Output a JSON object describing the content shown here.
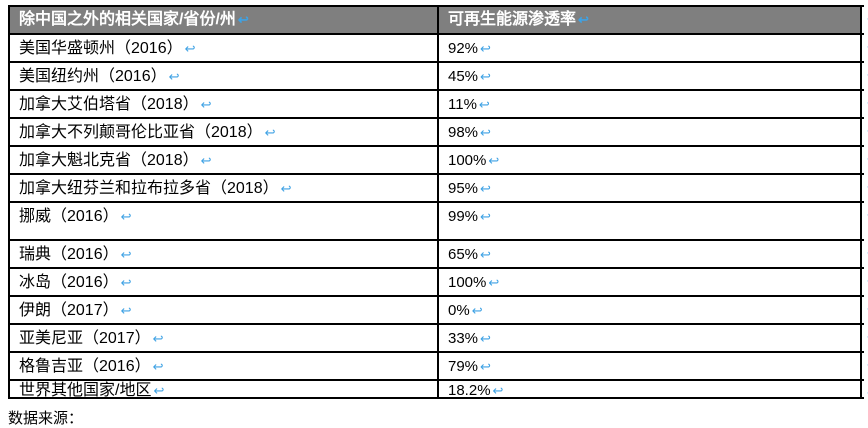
{
  "table": {
    "header": {
      "country_col": "除中国之外的相关国家/省份/州",
      "value_col": "可再生能源渗透率"
    },
    "rows": [
      {
        "name": "美国华盛顿州（2016）",
        "value": "92%"
      },
      {
        "name": "美国纽约州（2016）",
        "value": "45%"
      },
      {
        "name": "加拿大艾伯塔省（2018）",
        "value": "11%"
      },
      {
        "name": "加拿大不列颠哥伦比亚省（2018）",
        "value": "98%"
      },
      {
        "name": "加拿大魁北克省（2018）",
        "value": "100%"
      },
      {
        "name": "加拿大纽芬兰和拉布拉多省（2018）",
        "value": "95%"
      },
      {
        "name": "挪威（2016）",
        "value": "99%"
      },
      {
        "name": "瑞典（2016）",
        "value": "65%"
      },
      {
        "name": "冰岛（2016）",
        "value": "100%"
      },
      {
        "name": "伊朗（2017）",
        "value": "0%"
      },
      {
        "name": "亚美尼亚（2017）",
        "value": "33%"
      },
      {
        "name": "格鲁吉亚（2016）",
        "value": "79%"
      },
      {
        "name": "世界其他国家/地区",
        "value": "18.2%"
      }
    ]
  },
  "marks": {
    "return_mark": "↩"
  },
  "footer": {
    "text": "数据来源："
  },
  "colors": {
    "header_bg": "#7F7F7F",
    "header_text": "#FFFFFF",
    "border": "#000000",
    "format_mark_blue": "#3FA2E4"
  }
}
